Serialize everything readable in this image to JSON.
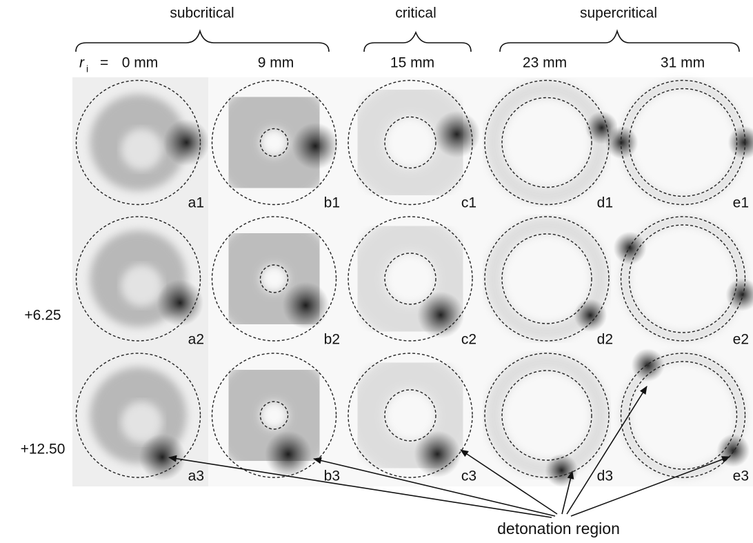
{
  "figure": {
    "groups": [
      "subcritical",
      "critical",
      "supercritical"
    ],
    "radius_label": {
      "symbol": "r",
      "subscript": "i",
      "sign": "="
    },
    "columns": [
      "0 mm",
      "9 mm",
      "15 mm",
      "23 mm",
      "31 mm"
    ],
    "row_labels": [
      "+6.25",
      "+12.50"
    ],
    "panels": [
      [
        "a1",
        "b1",
        "c1",
        "d1",
        "e1"
      ],
      [
        "a2",
        "b2",
        "c2",
        "d2",
        "e2"
      ],
      [
        "a3",
        "b3",
        "c3",
        "d3",
        "e3"
      ]
    ],
    "annotation": "detonation region"
  }
}
